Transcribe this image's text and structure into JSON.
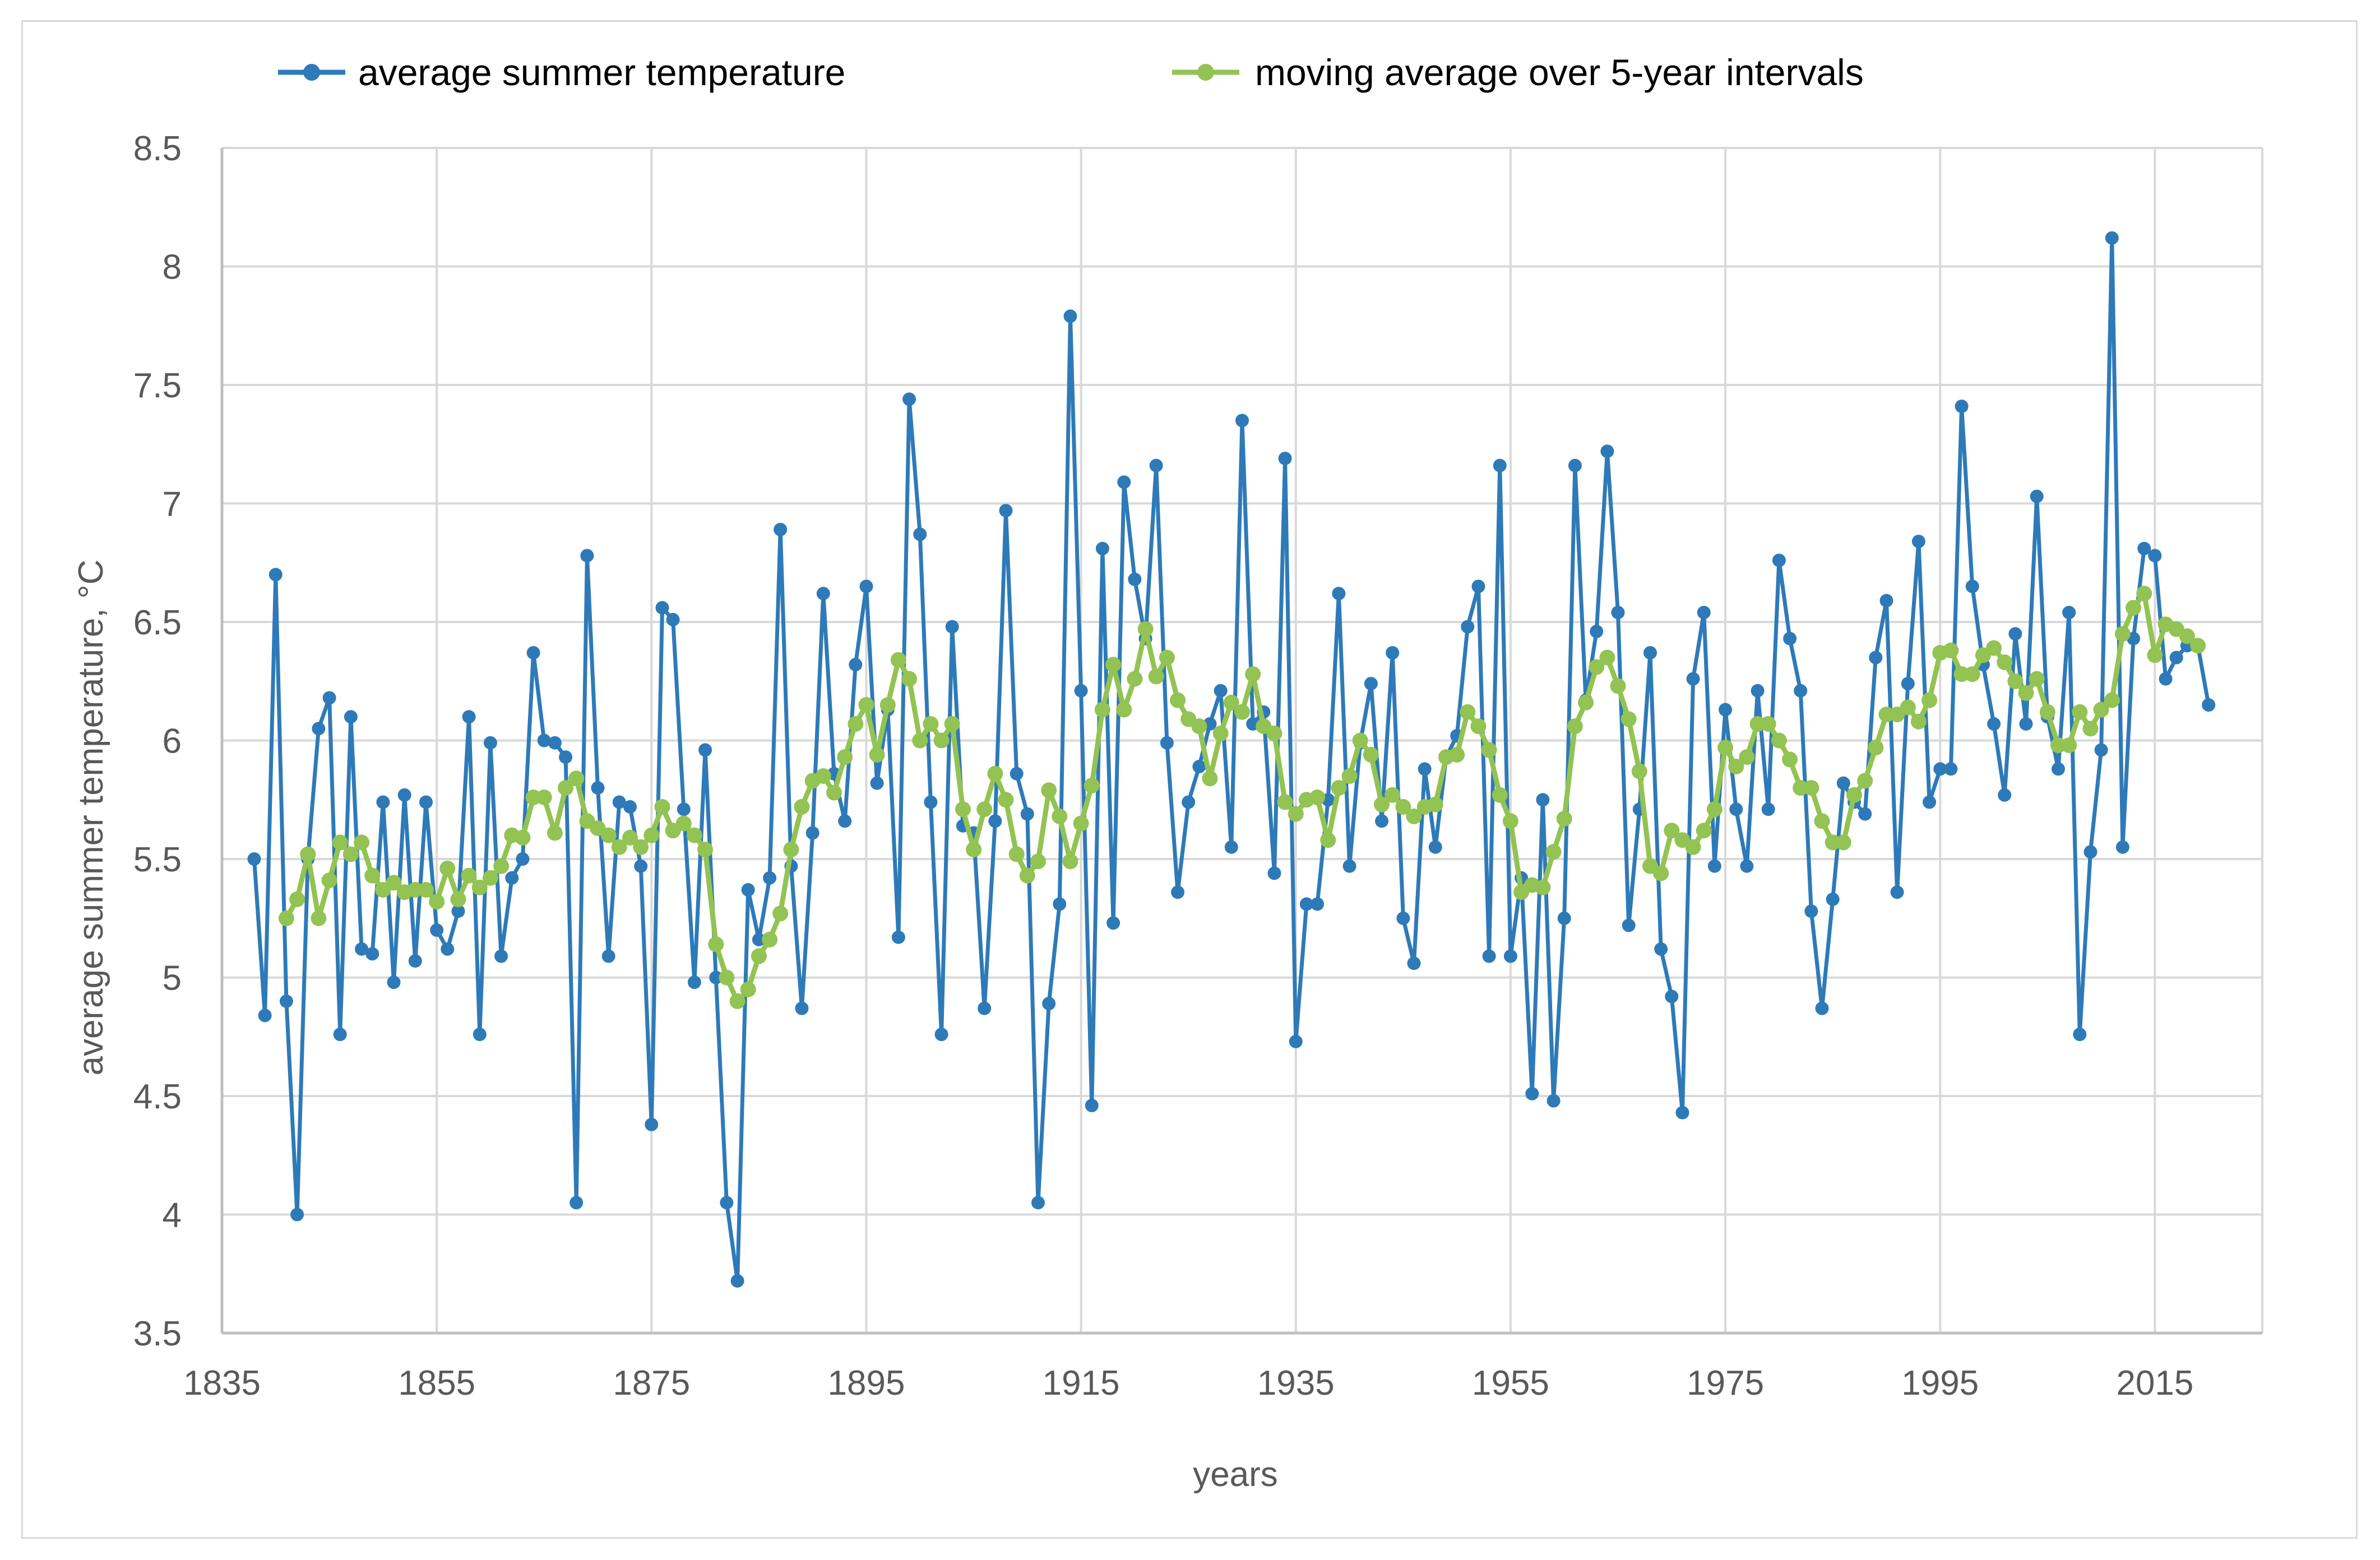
{
  "chart_data": {
    "type": "line",
    "title": "",
    "xlabel": "years",
    "ylabel": "average summer temperature, °C",
    "xlim": [
      1835,
      2025
    ],
    "ylim": [
      3.5,
      8.5
    ],
    "x_ticks": [
      1835,
      1855,
      1875,
      1895,
      1915,
      1935,
      1955,
      1975,
      1995,
      2015
    ],
    "y_ticks": [
      3.5,
      4,
      4.5,
      5,
      5.5,
      6,
      6.5,
      7,
      7.5,
      8,
      8.5
    ],
    "x_tick_labels": [
      "1835",
      "1855",
      "1875",
      "1895",
      "1915",
      "1935",
      "1955",
      "1975",
      "1995",
      "2015"
    ],
    "y_tick_labels": [
      "3.5",
      "4",
      "4.5",
      "5",
      "5.5",
      "6",
      "6.5",
      "7",
      "7.5",
      "8",
      "8.5"
    ],
    "grid": true,
    "legend_position": "top",
    "colors": {
      "temperature": "#2e7ab8",
      "moving_average": "#92c353",
      "grid": "#d9d9d9",
      "text": "#595959"
    },
    "series": [
      {
        "name": "average summer temperature",
        "start_year": 1838,
        "values": [
          5.5,
          4.84,
          6.7,
          4.9,
          4.0,
          5.5,
          6.05,
          6.18,
          4.76,
          6.1,
          5.12,
          5.1,
          5.74,
          4.98,
          5.77,
          5.07,
          5.74,
          5.2,
          5.12,
          5.28,
          6.1,
          4.76,
          5.99,
          5.09,
          5.42,
          5.5,
          6.37,
          6.0,
          5.99,
          5.93,
          4.05,
          6.78,
          5.8,
          5.09,
          5.74,
          5.72,
          5.47,
          4.38,
          6.56,
          6.51,
          5.71,
          4.98,
          5.96,
          5.0,
          4.05,
          3.72,
          5.37,
          5.16,
          5.42,
          6.89,
          5.47,
          4.87,
          5.61,
          6.62,
          5.86,
          5.66,
          6.32,
          6.65,
          5.82,
          6.13,
          5.17,
          7.44,
          6.87,
          5.74,
          4.76,
          6.48,
          5.64,
          5.61,
          4.87,
          5.66,
          6.97,
          5.86,
          5.69,
          4.05,
          4.89,
          5.31,
          7.79,
          6.21,
          4.46,
          6.81,
          5.23,
          7.09,
          6.68,
          6.43,
          7.16,
          5.99,
          5.36,
          5.74,
          5.89,
          6.07,
          6.21,
          5.55,
          7.35,
          6.07,
          6.12,
          5.44,
          7.19,
          4.73,
          5.31,
          5.31,
          5.75,
          6.62,
          5.47,
          5.99,
          6.24,
          5.66,
          6.37,
          5.25,
          5.06,
          5.88,
          5.55,
          5.93,
          6.02,
          6.48,
          6.65,
          5.09,
          7.16,
          5.09,
          5.42,
          4.51,
          5.75,
          4.48,
          5.25,
          7.16,
          6.17,
          6.46,
          7.22,
          6.54,
          5.22,
          5.71,
          6.37,
          5.12,
          4.92,
          4.43,
          6.26,
          6.54,
          5.47,
          6.13,
          5.71,
          5.47,
          6.21,
          5.71,
          6.76,
          6.43,
          6.21,
          5.28,
          4.87,
          5.33,
          5.82,
          5.74,
          5.69,
          6.35,
          6.59,
          5.36,
          6.24,
          6.84,
          5.74,
          5.88,
          5.88,
          7.41,
          6.65,
          6.32,
          6.07,
          5.77,
          6.45,
          6.07,
          7.03,
          6.1,
          5.88,
          6.54,
          4.76,
          5.53,
          5.96,
          8.12,
          5.55,
          6.43,
          6.81,
          6.78,
          6.26,
          6.35,
          6.4,
          6.4,
          6.15
        ]
      },
      {
        "name": "moving average over 5-year intervals",
        "start_year": 1841,
        "values": [
          5.25,
          5.33,
          5.52,
          5.25,
          5.41,
          5.57,
          5.52,
          5.57,
          5.43,
          5.37,
          5.4,
          5.36,
          5.37,
          5.37,
          5.32,
          5.46,
          5.33,
          5.43,
          5.38,
          5.42,
          5.47,
          5.6,
          5.59,
          5.76,
          5.76,
          5.61,
          5.8,
          5.84,
          5.66,
          5.63,
          5.6,
          5.55,
          5.59,
          5.55,
          5.6,
          5.72,
          5.62,
          5.65,
          5.6,
          5.54,
          5.14,
          5.0,
          4.9,
          4.95,
          5.09,
          5.16,
          5.27,
          5.54,
          5.72,
          5.83,
          5.85,
          5.78,
          5.93,
          6.07,
          6.15,
          5.94,
          6.15,
          6.34,
          6.26,
          6.0,
          6.07,
          6.0,
          6.07,
          5.71,
          5.54,
          5.71,
          5.86,
          5.75,
          5.52,
          5.43,
          5.49,
          5.79,
          5.68,
          5.49,
          5.65,
          5.81,
          6.13,
          6.32,
          6.13,
          6.26,
          6.47,
          6.27,
          6.35,
          6.17,
          6.09,
          6.06,
          5.84,
          6.03,
          6.16,
          6.12,
          6.28,
          6.06,
          6.03,
          5.74,
          5.69,
          5.75,
          5.76,
          5.58,
          5.8,
          5.85,
          6.0,
          5.94,
          5.73,
          5.77,
          5.72,
          5.68,
          5.72,
          5.73,
          5.93,
          5.94,
          6.12,
          6.06,
          5.96,
          5.77,
          5.66,
          5.36,
          5.39,
          5.38,
          5.53,
          5.67,
          6.06,
          6.16,
          6.31,
          6.35,
          6.23,
          6.09,
          5.87,
          5.47,
          5.44,
          5.62,
          5.58,
          5.55,
          5.62,
          5.71,
          5.97,
          5.89,
          5.93,
          6.07,
          6.07,
          6.0,
          5.92,
          5.8,
          5.8,
          5.66,
          5.57,
          5.57,
          5.77,
          5.83,
          5.97,
          6.11,
          6.11,
          6.14,
          6.08,
          6.17,
          6.37,
          6.38,
          6.28,
          6.28,
          6.36,
          6.39,
          6.33,
          6.25,
          6.2,
          6.26,
          6.12,
          5.98,
          5.98,
          6.12,
          6.05,
          6.13,
          6.17,
          6.45,
          6.56,
          6.62,
          6.36,
          6.49,
          6.47,
          6.44,
          6.4
        ]
      }
    ]
  }
}
